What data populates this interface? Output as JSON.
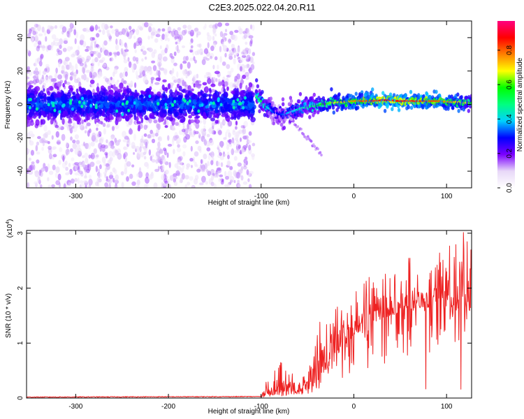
{
  "title": "C2E3.2025.022.04.20.R11",
  "chart_data": [
    {
      "type": "heatmap",
      "xlabel": "Height of straight line (km)",
      "ylabel": "Frequency (Hz)",
      "xlim": [
        -353,
        127
      ],
      "ylim": [
        -50,
        50
      ],
      "xticks": [
        -300,
        -200,
        -100,
        0,
        100
      ],
      "yticks": [
        -40,
        -20,
        0,
        20,
        40
      ],
      "colorbar": {
        "label": "Normalized spectral amplitude",
        "range": [
          0,
          0.97
        ],
        "ticks": [
          "0.0",
          "0.2",
          "0.4",
          "0.6",
          "0.8"
        ],
        "colors": [
          "#ffffff",
          "#e8d8f8",
          "#7b00ff",
          "#0000ff",
          "#00d0ff",
          "#00ff80",
          "#00ff00",
          "#ffff00",
          "#ff8000",
          "#ff0000",
          "#ff0080"
        ]
      },
      "noise_region": {
        "x_range": [
          -353,
          -108
        ],
        "core_freq_range": [
          -8,
          8
        ],
        "scatter_freq_range": [
          -50,
          48
        ]
      },
      "ridge": {
        "x": [
          -105,
          -100,
          -95,
          -90,
          -85,
          -80,
          -75,
          -70,
          -65,
          -60,
          -55,
          -50,
          -45,
          -40,
          -35,
          -30,
          -25,
          -20,
          -10,
          0,
          10,
          20,
          30,
          40,
          50,
          60,
          70,
          80,
          90,
          100,
          110,
          120,
          127
        ],
        "freq": [
          5,
          2,
          -1,
          -3,
          -5,
          -6,
          -6,
          -5,
          -4,
          -3,
          -2,
          -2,
          -1,
          -1,
          0,
          0,
          1,
          1,
          1.5,
          2,
          2,
          2,
          2.5,
          2.5,
          2,
          2,
          2,
          2,
          2,
          1.5,
          1.5,
          1,
          1
        ],
        "amplitude": [
          0.5,
          0.55,
          0.45,
          0.4,
          0.3,
          0.3,
          0.35,
          0.4,
          0.4,
          0.45,
          0.45,
          0.5,
          0.5,
          0.55,
          0.6,
          0.6,
          0.65,
          0.7,
          0.75,
          0.8,
          0.85,
          0.85,
          0.9,
          0.9,
          0.9,
          0.88,
          0.88,
          0.85,
          0.85,
          0.8,
          0.75,
          0.7,
          0.6
        ]
      },
      "tail": {
        "x": [
          -70,
          -35
        ],
        "freq": [
          -8,
          -30
        ]
      }
    },
    {
      "type": "line",
      "xlabel": "Height of straight line (km)",
      "ylabel": "SNR (10 * v/v)",
      "y_multiplier": "(x10^4)",
      "xlim": [
        -353,
        127
      ],
      "ylim": [
        0,
        3.05
      ],
      "xticks": [
        -300,
        -200,
        -100,
        0,
        100
      ],
      "yticks": [
        0,
        1,
        2,
        3
      ],
      "series": [
        {
          "color": "#ee2222",
          "envelope": {
            "x": [
              -353,
              -100,
              -95,
              -90,
              -85,
              -80,
              -75,
              -70,
              -65,
              -60,
              -55,
              -50,
              -45,
              -40,
              -35,
              -30,
              -25,
              -20,
              -15,
              -10,
              -5,
              0,
              10,
              20,
              30,
              40,
              50,
              60,
              70,
              80,
              90,
              100,
              110,
              120,
              127
            ],
            "base": [
              0.01,
              0.02,
              0.04,
              0.05,
              0.06,
              0.06,
              0.07,
              0.07,
              0.08,
              0.1,
              0.12,
              0.15,
              0.2,
              0.3,
              0.4,
              0.5,
              0.6,
              0.75,
              0.85,
              0.95,
              1.05,
              1.15,
              1.25,
              1.35,
              1.45,
              1.5,
              1.55,
              1.6,
              1.65,
              1.65,
              1.65,
              1.65,
              1.6,
              1.6,
              1.55
            ],
            "peak": [
              0.03,
              0.08,
              0.3,
              0.4,
              0.5,
              0.8,
              0.6,
              0.5,
              0.5,
              0.5,
              0.55,
              0.6,
              0.8,
              1.2,
              1.5,
              1.55,
              1.5,
              1.6,
              1.75,
              1.75,
              1.8,
              2.0,
              2.1,
              2.25,
              2.35,
              2.45,
              2.5,
              2.55,
              2.6,
              2.7,
              2.95,
              2.9,
              2.85,
              3.05,
              2.9
            ]
          }
        }
      ]
    }
  ]
}
